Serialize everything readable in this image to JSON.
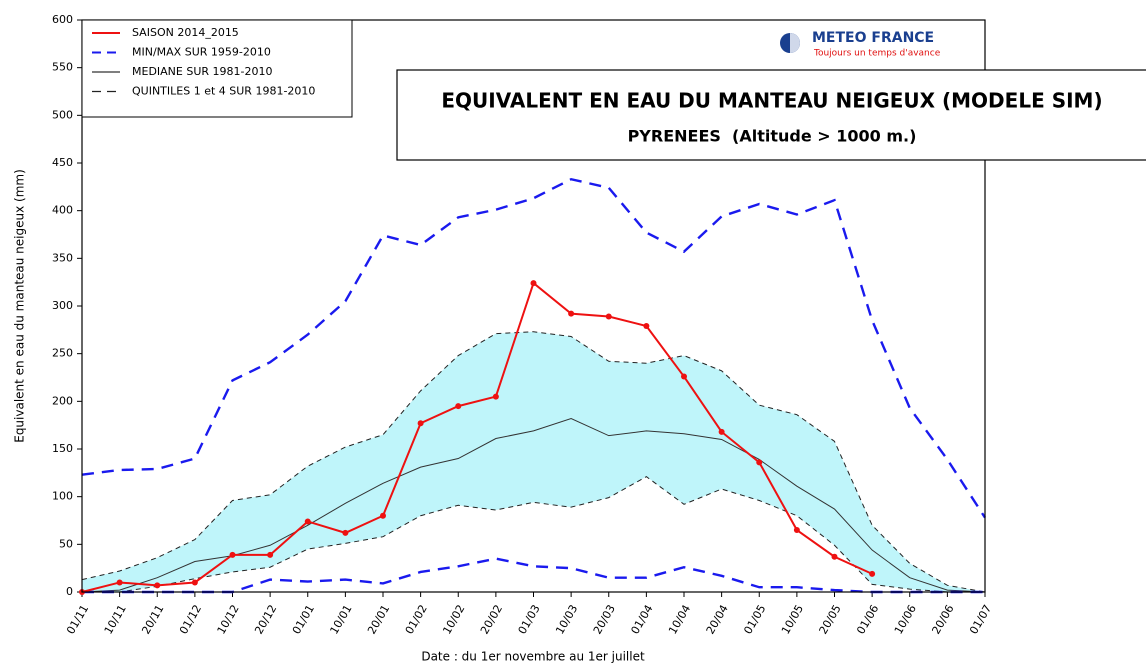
{
  "chart_data": {
    "type": "line",
    "title": "EQUIVALENT EN EAU DU MANTEAU NEIGEUX (MODELE SIM)",
    "subtitle": "PYRENEES  (Altitude > 1000 m.)",
    "logo": {
      "name": "METEO FRANCE",
      "slogan": "Toujours un temps d'avance"
    },
    "y_label": "Equivalent en eau du manteau neigeux (mm)",
    "x_label": "Date : du 1er novembre au 1er juillet",
    "categories": [
      "01/11",
      "10/11",
      "20/11",
      "01/12",
      "10/12",
      "20/12",
      "01/01",
      "10/01",
      "20/01",
      "01/02",
      "10/02",
      "20/02",
      "01/03",
      "10/03",
      "20/03",
      "01/04",
      "10/04",
      "20/04",
      "01/05",
      "10/05",
      "20/05",
      "01/06",
      "10/06",
      "20/06",
      "01/07"
    ],
    "ylim": [
      0,
      600
    ],
    "yticks": [
      0,
      50,
      100,
      150,
      200,
      250,
      300,
      350,
      400,
      450,
      500,
      550,
      600
    ],
    "band_color": "#bff5fa",
    "series": [
      {
        "name": "SAISON 2014_2015",
        "color": "#ee1111",
        "dash": false,
        "markers": true,
        "values": [
          0,
          10,
          7,
          10,
          39,
          39,
          74,
          62,
          80,
          177,
          195,
          205,
          324,
          292,
          289,
          279,
          226,
          168,
          136,
          65,
          37,
          19,
          null,
          null,
          null
        ]
      },
      {
        "name": "MIN/MAX SUR 1959-2010",
        "color": "#1a1aee",
        "dash": true,
        "markers": false,
        "values": [
          0,
          0,
          0,
          0,
          0,
          13,
          11,
          13,
          9,
          21,
          27,
          35,
          27,
          25,
          15,
          15,
          26,
          17,
          5,
          5,
          2,
          0,
          0,
          0,
          0
        ],
        "upper": [
          123,
          128,
          129,
          140,
          222,
          241,
          270,
          305,
          374,
          364,
          393,
          401,
          413,
          433,
          424,
          377,
          357,
          394,
          407,
          396,
          411,
          285,
          193,
          139,
          78
        ]
      },
      {
        "name": "MEDIANE SUR 1981-2010",
        "color": "#333333",
        "dash": false,
        "markers": false,
        "values": [
          0,
          2,
          15,
          32,
          38,
          49,
          70,
          93,
          114,
          131,
          140,
          161,
          169,
          182,
          164,
          169,
          166,
          160,
          139,
          111,
          87,
          44,
          15,
          2,
          0
        ]
      },
      {
        "name": "QUINTILES 1 et 4 SUR 1981-2010",
        "color": "#222222",
        "dash": true,
        "markers": false,
        "band": true,
        "values": [
          0,
          0,
          6,
          14,
          21,
          26,
          45,
          51,
          58,
          80,
          91,
          86,
          94,
          89,
          99,
          121,
          92,
          108,
          96,
          80,
          49,
          8,
          3,
          0,
          0
        ],
        "upper": [
          13,
          22,
          36,
          55,
          96,
          102,
          132,
          152,
          165,
          211,
          248,
          271,
          273,
          268,
          242,
          240,
          248,
          232,
          196,
          186,
          158,
          70,
          30,
          7,
          0
        ]
      }
    ]
  }
}
